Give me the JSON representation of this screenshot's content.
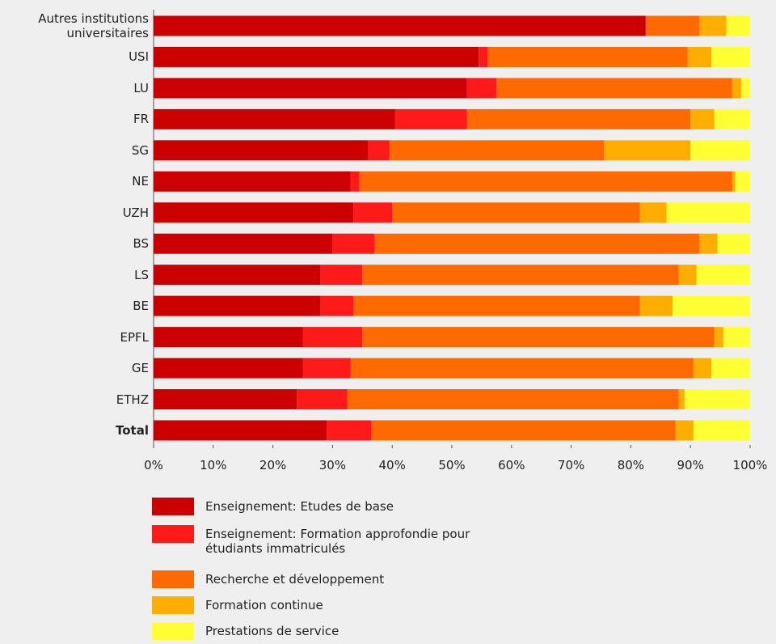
{
  "chart_data": {
    "type": "bar",
    "orientation": "horizontal",
    "stacked": true,
    "categories": [
      "Autres institutions universitaires",
      "USI",
      "LU",
      "FR",
      "SG",
      "NE",
      "UZH",
      "BS",
      "LS",
      "BE",
      "EPFL",
      "GE",
      "ETHZ",
      "Total"
    ],
    "series": [
      {
        "name": "Enseignement: Etudes de base",
        "color": "#cc0000",
        "values": [
          82.5,
          54.5,
          52.5,
          40.5,
          36,
          33,
          33.5,
          30,
          28,
          28,
          25,
          25,
          24,
          29
        ]
      },
      {
        "name": "Enseignement: Formation approfondie pour étudiants immatriculés",
        "color": "#ff1a1a",
        "values": [
          0,
          1.5,
          5,
          12,
          3.5,
          1.5,
          6.5,
          7,
          7,
          5.5,
          10,
          8,
          8.5,
          7.5
        ]
      },
      {
        "name": "Recherche et développement",
        "color": "#ff6a00",
        "values": [
          9,
          33.5,
          39.5,
          37.5,
          36,
          62.5,
          41.5,
          54.5,
          53,
          48,
          59,
          57.5,
          55.5,
          51
        ]
      },
      {
        "name": "Formation continue",
        "color": "#ffad00",
        "values": [
          4.5,
          4,
          1.5,
          4,
          14.5,
          0.5,
          4.5,
          3,
          3,
          5.5,
          1.5,
          3,
          1,
          3
        ]
      },
      {
        "name": "Prestations de service",
        "color": "#ffff33",
        "values": [
          4,
          6.5,
          1.5,
          6,
          10,
          2.5,
          14,
          5.5,
          9,
          13,
          4.5,
          6.5,
          11,
          9.5
        ]
      }
    ],
    "xlim": [
      0,
      100
    ],
    "xticks": [
      {
        "value": 0,
        "label": "0%"
      },
      {
        "value": 10,
        "label": "10%"
      },
      {
        "value": 20,
        "label": "20%"
      },
      {
        "value": 30,
        "label": "30%"
      },
      {
        "value": 40,
        "label": "40%"
      },
      {
        "value": 50,
        "label": "50%"
      },
      {
        "value": 60,
        "label": "60%"
      },
      {
        "value": 70,
        "label": "70%"
      },
      {
        "value": 80,
        "label": "80%"
      },
      {
        "value": 90,
        "label": "90%"
      },
      {
        "value": 100,
        "label": "100%"
      }
    ],
    "legend": "bottom"
  }
}
